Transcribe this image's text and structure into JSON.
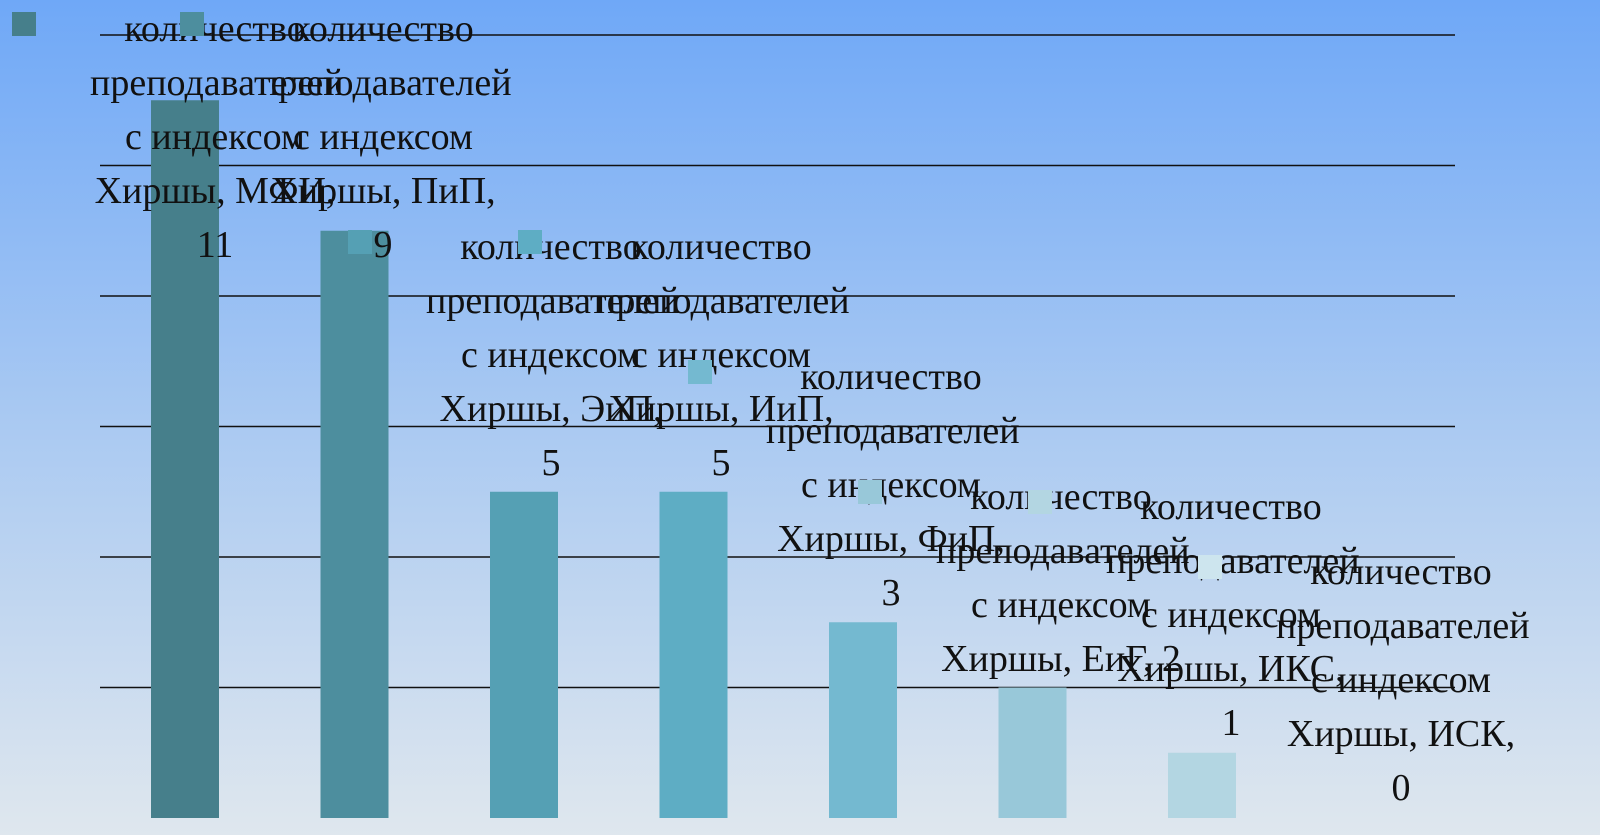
{
  "chart_data": {
    "type": "bar",
    "ylim": [
      0,
      12
    ],
    "yticks": [
      2,
      4,
      6,
      8,
      10,
      12
    ],
    "grid": true,
    "series": [
      {
        "color": "#467f8b",
        "values": [
          11
        ],
        "value_labels": [
          "количество преподавателей с индексом Хиршы, МФИ, 11"
        ]
      },
      {
        "color": "#4d8e9e",
        "values": [
          9
        ],
        "value_labels": [
          "количество преподавателей с индексом Хиршы, ПиП, 9"
        ]
      },
      {
        "color": "#55a0b4",
        "values": [
          5
        ],
        "value_labels": [
          "количество преподавателей с индексом Хиршы, ЭиП, 5"
        ]
      },
      {
        "color": "#5eadc4",
        "values": [
          5
        ],
        "value_labels": [
          "количество преподавателей с индексом Хиршы, ИиП, 5"
        ]
      },
      {
        "color": "#74b9d0",
        "values": [
          3
        ],
        "value_labels": [
          "количество преподавателей с индексом Хиршы, ФиП, 3"
        ]
      },
      {
        "color": "#98c8d9",
        "values": [
          2
        ],
        "value_labels": [
          "количество преподавателей с индексом Хиршы, ЕиГ, 2"
        ]
      },
      {
        "color": "#b3d6e2",
        "values": [
          1
        ],
        "value_labels": [
          "количество преподавателей с индексом Хиршы, ИКС, 1"
        ]
      },
      {
        "color": "#cde5ee",
        "values": [
          0
        ],
        "value_labels": [
          "количество преподавателей с индексом Хиршы, ИСК, 0"
        ]
      }
    ]
  }
}
